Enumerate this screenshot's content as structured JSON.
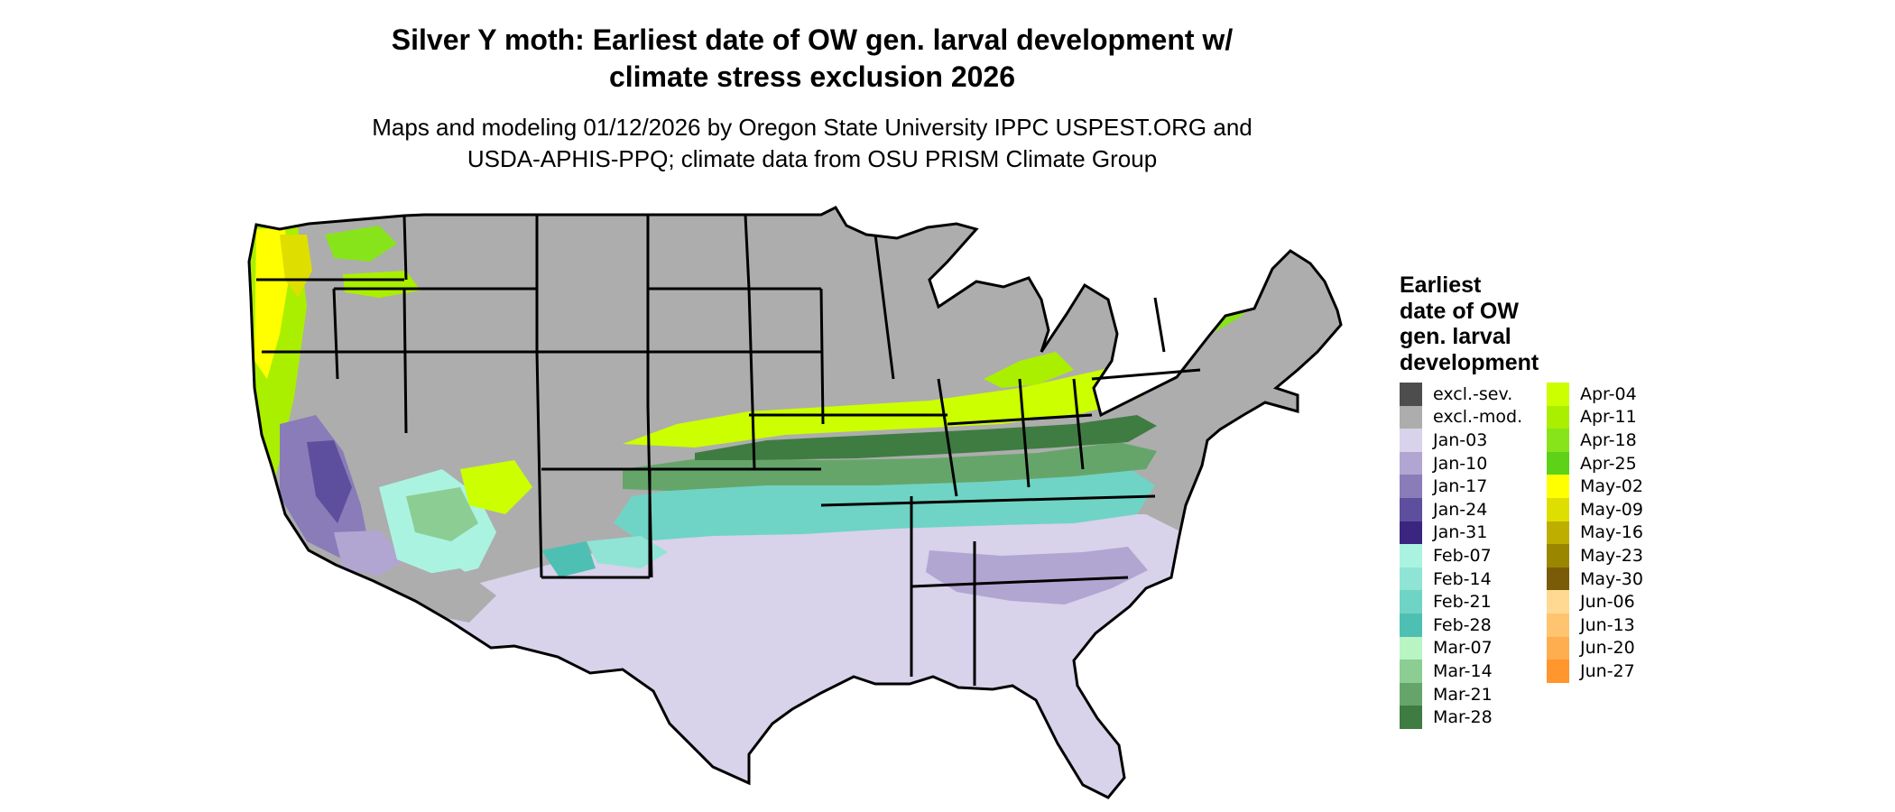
{
  "title": "Silver Y moth: Earliest date of OW gen. larval development w/\nclimate stress exclusion 2026",
  "subtitle": "Maps and modeling 01/12/2026 by Oregon State University IPPC USPEST.ORG and\nUSDA-APHIS-PPQ; climate data from OSU PRISM Climate Group",
  "legend": {
    "title": "Earliest\ndate of OW\ngen. larval\ndevelopment",
    "items": [
      {
        "label": "excl.-sev.",
        "color": "#4d4d4d"
      },
      {
        "label": "excl.-mod.",
        "color": "#adadad"
      },
      {
        "label": "Jan-03",
        "color": "#d8d2ea"
      },
      {
        "label": "Jan-10",
        "color": "#b1a6d2"
      },
      {
        "label": "Jan-17",
        "color": "#8a7cb9"
      },
      {
        "label": "Jan-24",
        "color": "#5e4f9e"
      },
      {
        "label": "Jan-31",
        "color": "#3a2580"
      },
      {
        "label": "Feb-07",
        "color": "#abf3e1"
      },
      {
        "label": "Feb-14",
        "color": "#8fe4d5"
      },
      {
        "label": "Feb-21",
        "color": "#6fd4c5"
      },
      {
        "label": "Feb-28",
        "color": "#4ec0b3"
      },
      {
        "label": "Mar-07",
        "color": "#b8f5c3"
      },
      {
        "label": "Mar-14",
        "color": "#8ccd93"
      },
      {
        "label": "Mar-21",
        "color": "#66a56a"
      },
      {
        "label": "Mar-28",
        "color": "#3f7c42"
      },
      {
        "label": "Apr-04",
        "color": "#ccff00"
      },
      {
        "label": "Apr-11",
        "color": "#aaef00"
      },
      {
        "label": "Apr-18",
        "color": "#88e41a"
      },
      {
        "label": "Apr-25",
        "color": "#5dd218"
      },
      {
        "label": "May-02",
        "color": "#ffff00"
      },
      {
        "label": "May-09",
        "color": "#dede00"
      },
      {
        "label": "May-16",
        "color": "#bdae00"
      },
      {
        "label": "May-23",
        "color": "#9b8600"
      },
      {
        "label": "May-30",
        "color": "#7a5c08"
      },
      {
        "label": "Jun-06",
        "color": "#ffd992"
      },
      {
        "label": "Jun-13",
        "color": "#ffc470"
      },
      {
        "label": "Jun-20",
        "color": "#ffae4f"
      },
      {
        "label": "Jun-27",
        "color": "#ff962e"
      }
    ]
  }
}
